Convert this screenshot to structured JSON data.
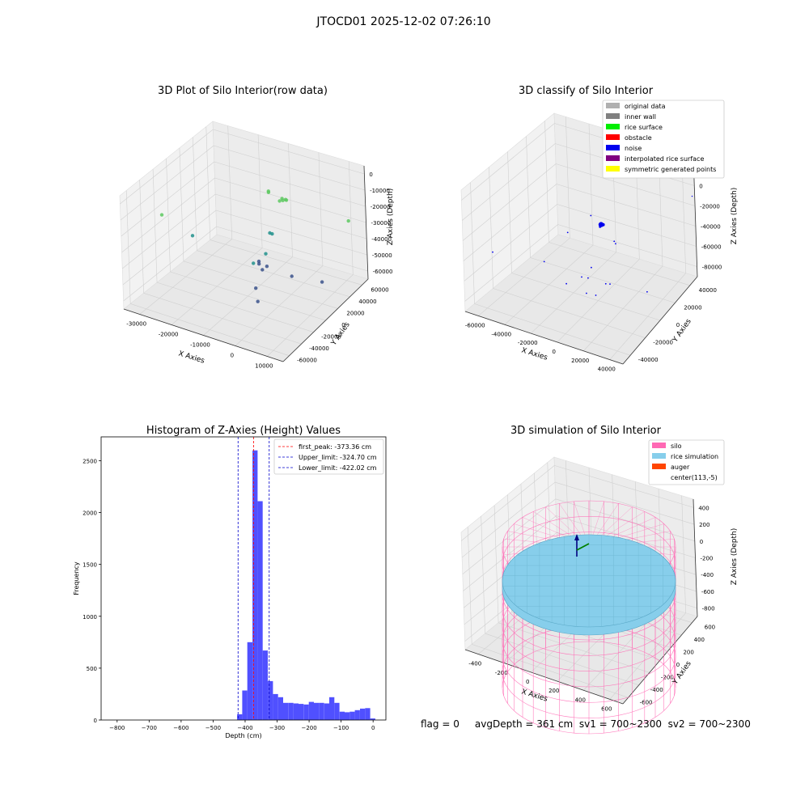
{
  "figure": {
    "suptitle": "JTOCD01 2025-12-02 07:26:10",
    "status_text": "flag = 0     avgDepth = 361 cm  sv1 = 700~2300  sv2 = 700~2300"
  },
  "chart_data": [
    {
      "type": "scatter",
      "title": "3D Plot of Silo Interior(row data)",
      "xlabel": "X Axies",
      "ylabel": "Y Axies",
      "zlabel": "Z Axies (Depth)",
      "xticks": [
        "-30000",
        "-20000",
        "-10000",
        "0",
        "10000"
      ],
      "yticks": [
        "-60000",
        "-40000",
        "-20000",
        "0",
        "20000",
        "40000",
        "60000"
      ],
      "zticks": [
        "-60000",
        "-50000",
        "-40000",
        "-30000",
        "-20000",
        "-10000",
        "0"
      ],
      "xlim": [
        -35000,
        15000
      ],
      "ylim": [
        -60000,
        60000
      ],
      "zlim": [
        -70000,
        5000
      ],
      "colormap": [
        "#440154",
        "#3b528b",
        "#21918c",
        "#5ec962",
        "#fde725"
      ],
      "points": [
        {
          "x": -2500,
          "y": 15000,
          "z": -5000
        },
        {
          "x": -2000,
          "y": 14000,
          "z": -5500
        },
        {
          "x": -1500,
          "y": 15500,
          "z": -5200
        },
        {
          "x": -2800,
          "y": 13000,
          "z": -6000
        },
        {
          "x": -1000,
          "y": 14500,
          "z": -4800
        },
        {
          "x": -8000,
          "y": 20000,
          "z": -6000
        },
        {
          "x": -8500,
          "y": 22000,
          "z": -8000
        },
        {
          "x": 12000,
          "y": 40000,
          "z": -20000
        },
        {
          "x": -32000,
          "y": -20000,
          "z": -22000
        },
        {
          "x": -3500,
          "y": 5000,
          "z": -25000
        },
        {
          "x": -4500,
          "y": 6000,
          "z": -25500
        },
        {
          "x": -25000,
          "y": -10000,
          "z": -35000
        },
        {
          "x": -6000,
          "y": -10000,
          "z": -40000
        },
        {
          "x": -5000,
          "y": 2000,
          "z": -38000
        },
        {
          "x": -7000,
          "y": 1000,
          "z": -44000
        },
        {
          "x": -3000,
          "y": -5000,
          "z": -42000
        },
        {
          "x": -8000,
          "y": 5000,
          "z": -48000
        },
        {
          "x": -6500,
          "y": 3000,
          "z": -50000
        },
        {
          "x": 1000,
          "y": 10000,
          "z": -52000
        },
        {
          "x": -5000,
          "y": -12000,
          "z": -55000
        },
        {
          "x": -3000,
          "y": -18000,
          "z": -60000
        },
        {
          "x": 8000,
          "y": 20000,
          "z": -55000
        }
      ]
    },
    {
      "type": "scatter",
      "title": "3D classify of Silo Interior",
      "xlabel": "X Axies",
      "ylabel": "Y Axies",
      "zlabel": "Z Axies (Depth)",
      "xticks": [
        "-60000",
        "-40000",
        "-20000",
        "0",
        "20000",
        "40000"
      ],
      "yticks": [
        "-40000",
        "-20000",
        "0",
        "20000",
        "40000"
      ],
      "zticks": [
        "-80000",
        "-60000",
        "-40000",
        "-20000",
        "0",
        "20000"
      ],
      "xlim": [
        -70000,
        50000
      ],
      "ylim": [
        -50000,
        50000
      ],
      "zlim": [
        -90000,
        25000
      ],
      "legend_position": "top-right",
      "legend": [
        {
          "label": "original data",
          "color": "#b0b0b0"
        },
        {
          "label": "inner wall",
          "color": "#808080"
        },
        {
          "label": "rice surface",
          "color": "#00ee00"
        },
        {
          "label": "obstacle",
          "color": "#ff0000"
        },
        {
          "label": "noise",
          "color": "#0000ee"
        },
        {
          "label": "interpolated rice surface",
          "color": "#800080"
        },
        {
          "label": "symmetric generated points",
          "color": "#ffff00"
        }
      ],
      "points": [
        {
          "x": 0,
          "y": 0,
          "z": -15000,
          "s": 3.2
        },
        {
          "x": 500,
          "y": 1500,
          "z": -16000,
          "s": 2
        },
        {
          "x": -500,
          "y": -500,
          "z": -17000,
          "s": 1.4
        },
        {
          "x": -20000,
          "y": -8000,
          "z": -25000,
          "s": 0.9
        },
        {
          "x": -15000,
          "y": 10000,
          "z": -20000,
          "s": 0.9
        },
        {
          "x": 6000,
          "y": 5000,
          "z": -32000,
          "s": 0.9
        },
        {
          "x": 5500,
          "y": 7000,
          "z": -36000,
          "s": 0.9
        },
        {
          "x": -62000,
          "y": -30000,
          "z": -45000,
          "s": 0.9
        },
        {
          "x": -30000,
          "y": -20000,
          "z": -48000,
          "s": 0.9
        },
        {
          "x": -2000,
          "y": -9000,
          "z": -50000,
          "s": 0.9
        },
        {
          "x": -12000,
          "y": -22000,
          "z": -60000,
          "s": 0.9
        },
        {
          "x": -6000,
          "y": -14000,
          "z": -57000,
          "s": 0.9
        },
        {
          "x": -4000,
          "y": -10000,
          "z": -60000,
          "s": 0.9
        },
        {
          "x": 8000,
          "y": -8000,
          "z": -62000,
          "s": 0.9
        },
        {
          "x": 9000,
          "y": -5000,
          "z": -64000,
          "s": 0.9
        },
        {
          "x": -2000,
          "y": -15000,
          "z": -70000,
          "s": 0.9
        },
        {
          "x": 3000,
          "y": -12000,
          "z": -72000,
          "s": 0.9
        },
        {
          "x": 30000,
          "y": 5000,
          "z": -70000,
          "s": 0.9
        },
        {
          "x": 45000,
          "y": 35000,
          "z": 5000,
          "s": 0.7
        }
      ]
    },
    {
      "type": "bar",
      "title": "Histogram of Z-Axies (Height) Values",
      "xlabel": "Depth (cm)",
      "ylabel": "Frequency",
      "xticks": [
        -800,
        -700,
        -600,
        -500,
        -400,
        -300,
        -200,
        -100,
        0
      ],
      "yticks": [
        0,
        500,
        1000,
        1500,
        2000,
        2500
      ],
      "xlim": [
        -850,
        40
      ],
      "ylim": [
        0,
        2730
      ],
      "bar_color": "#4d4dff",
      "bin_start": -425,
      "bin_width": 16,
      "counts": [
        55,
        285,
        750,
        2600,
        2110,
        670,
        375,
        250,
        220,
        165,
        165,
        160,
        155,
        150,
        175,
        165,
        165,
        160,
        220,
        165,
        80,
        75,
        80,
        95,
        110,
        115,
        15
      ],
      "vlines": [
        {
          "label": "first_peak: -373.36 cm",
          "x": -373.36,
          "color": "#ff0000"
        },
        {
          "label": "Upper_limit: -324.70 cm",
          "x": -324.7,
          "color": "#0000cc"
        },
        {
          "label": "Lower_limit: -422.02 cm",
          "x": -422.02,
          "color": "#0000cc"
        }
      ],
      "legend_position": "top-right"
    },
    {
      "type": "surface",
      "title": "3D simulation of Silo Interior",
      "xlabel": "X Axies",
      "ylabel": "Y Axies",
      "zlabel": "Z Axies (Depth)",
      "xticks": [
        "-400",
        "-200",
        "0",
        "200",
        "400",
        "600"
      ],
      "yticks": [
        "-600",
        "-400",
        "-200",
        "0",
        "200",
        "400",
        "600"
      ],
      "zticks": [
        "-800",
        "-600",
        "-400",
        "-200",
        "0",
        "200",
        "400"
      ],
      "legend_position": "top-right",
      "legend": [
        {
          "label": "silo",
          "color": "#ff69b4"
        },
        {
          "label": "rice simulation",
          "color": "#87ceeb"
        },
        {
          "label": "auger",
          "color": "#ff4500"
        },
        {
          "label": "center(113,-5)",
          "color": ""
        }
      ],
      "silo_color": "#ff69b4",
      "rice_color": "#87ceeb",
      "rice_depth": -361
    }
  ]
}
